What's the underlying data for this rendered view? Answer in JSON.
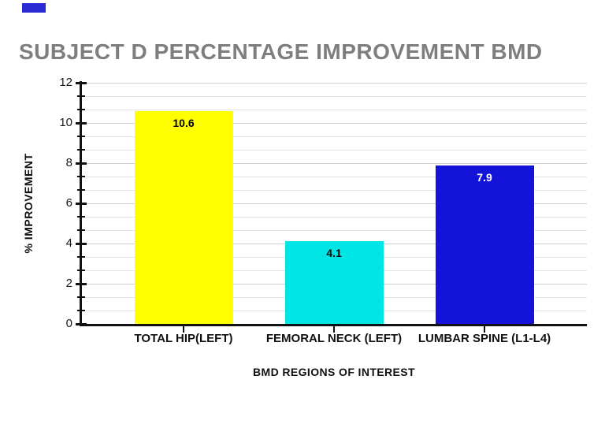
{
  "page": {
    "background": "#ffffff"
  },
  "marker": {
    "name": "blue-rectangle",
    "color": "#2b2bd5"
  },
  "title": {
    "text": "SUBJECT D PERCENTAGE IMPROVEMENT BMD",
    "color": "#7e7e7e"
  },
  "chart_data": {
    "type": "bar",
    "title": "SUBJECT D PERCENTAGE IMPROVEMENT BMD",
    "categories": [
      "TOTAL HIP(LEFT)",
      "FEMORAL NECK (LEFT)",
      "LUMBAR SPINE (L1-L4)"
    ],
    "values": [
      10.6,
      4.1,
      7.9
    ],
    "data_labels": [
      "10.6",
      "4.1",
      "7.9"
    ],
    "bar_colors": [
      "#ffff00",
      "#00e6e6",
      "#1414d9"
    ],
    "data_label_colors": [
      "#000000",
      "#000000",
      "#ffffff"
    ],
    "xlabel": "BMD REGIONS OF INTEREST",
    "ylabel": "% IMPROVEMENT",
    "ylim": [
      0,
      12
    ],
    "yticks": [
      0,
      2,
      4,
      6,
      8,
      10,
      12
    ],
    "minor_ticks_per_major": 3,
    "grid": "horizontal",
    "gridline_minor_color": "#e3e3e3",
    "gridline_major_color": "#cfcfcf",
    "legend": "none",
    "axis_color": "#111111"
  }
}
